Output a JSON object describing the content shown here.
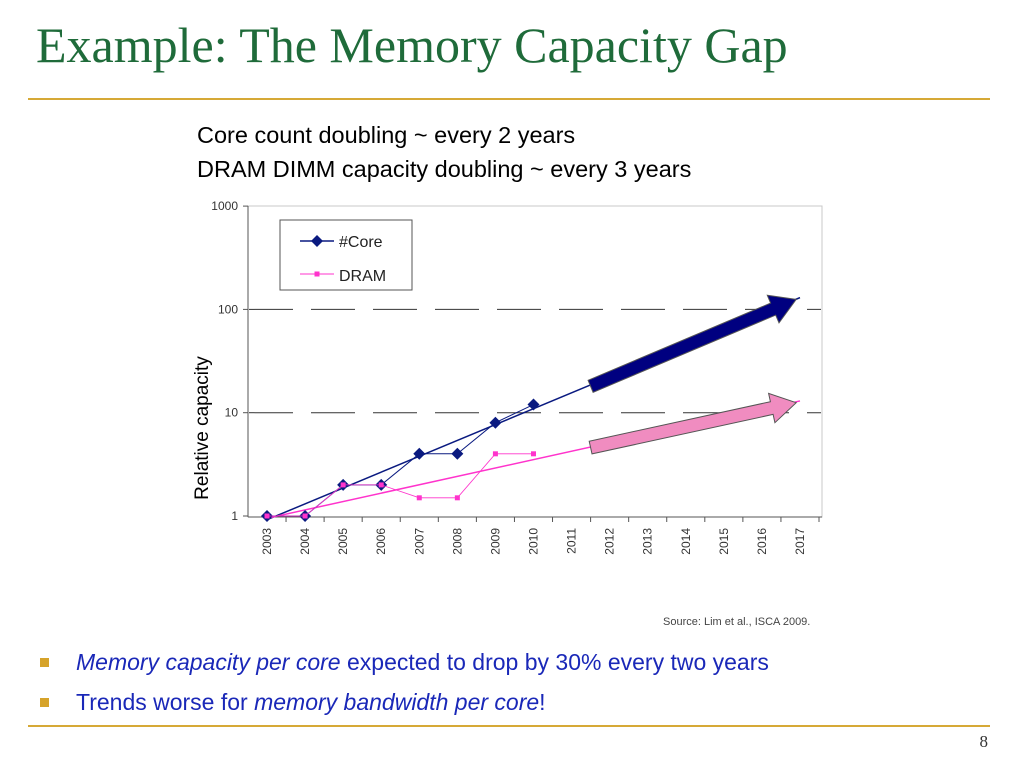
{
  "slide": {
    "title": "Example: The Memory Capacity Gap",
    "subtitle_lines": [
      "Core count doubling ~ every 2 years",
      "DRAM DIMM capacity doubling ~ every 3 years"
    ],
    "source": "Source: Lim et al., ISCA 2009.",
    "bullets": [
      {
        "italic": "Memory capacity per core",
        "rest": " expected to drop by 30% every two years"
      },
      {
        "pre": "Trends worse for ",
        "italic": "memory bandwidth per core",
        "post": "!"
      }
    ],
    "page_number": "8"
  },
  "chart_data": {
    "type": "line",
    "ylabel": "Relative capacity",
    "y_scale": "log",
    "ylim": [
      1,
      1000
    ],
    "y_ticks": [
      1,
      10,
      100,
      1000
    ],
    "y_tick_labels": [
      "1",
      "10",
      "100",
      "1000"
    ],
    "x_categories": [
      "2003",
      "2004",
      "2005",
      "2006",
      "2007",
      "2008",
      "2009",
      "2010",
      "2011",
      "2012",
      "2013",
      "2014",
      "2015",
      "2016",
      "2017"
    ],
    "series": [
      {
        "name": "#Core",
        "color": "#0a1a80",
        "marker": "diamond",
        "x": [
          "2003",
          "2004",
          "2005",
          "2006",
          "2007",
          "2008",
          "2009",
          "2010"
        ],
        "values": [
          1,
          1,
          2,
          2,
          4,
          4,
          8,
          12
        ]
      },
      {
        "name": "DRAM",
        "color": "#ff33cc",
        "marker": "square",
        "x": [
          "2003",
          "2004",
          "2005",
          "2006",
          "2007",
          "2008",
          "2009",
          "2010"
        ],
        "values": [
          1,
          1,
          2,
          2,
          1.5,
          1.5,
          4,
          4
        ]
      }
    ],
    "trendlines": [
      {
        "series": "#Core",
        "color": "#0a1a80",
        "from": {
          "x": "2003",
          "y": 0.92
        },
        "to": {
          "x": "2017",
          "y": 130
        }
      },
      {
        "series": "DRAM",
        "color": "#ff33cc",
        "from": {
          "x": "2003",
          "y": 0.95
        },
        "to": {
          "x": "2017",
          "y": 13
        }
      }
    ],
    "arrows": [
      {
        "fill": "#000080",
        "from": {
          "x": "2011.5",
          "y": 18
        },
        "to": {
          "x": "2016.9",
          "y": 125
        }
      },
      {
        "fill": "#f08cc0",
        "from": {
          "x": "2011.5",
          "y": 4.6
        },
        "to": {
          "x": "2016.9",
          "y": 12.5
        }
      }
    ],
    "legend_position": "top-left",
    "grid": "dashed horizontal at 10 and 100"
  }
}
